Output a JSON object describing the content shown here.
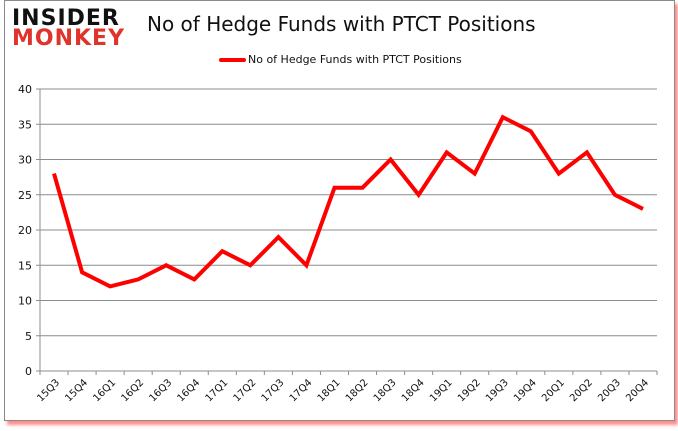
{
  "logo": {
    "line1": "INSIDER",
    "line2": "MONKEY"
  },
  "chart_data": {
    "type": "line",
    "title": "No of Hedge Funds with PTCT Positions",
    "xlabel": "",
    "ylabel": "",
    "ylim": [
      0,
      40
    ],
    "yticks": [
      0,
      5,
      10,
      15,
      20,
      25,
      30,
      35,
      40
    ],
    "grid": true,
    "legend_position": "top",
    "categories": [
      "15Q3",
      "15Q4",
      "16Q1",
      "16Q2",
      "16Q3",
      "16Q4",
      "17Q1",
      "17Q2",
      "17Q3",
      "17Q4",
      "18Q1",
      "18Q2",
      "18Q3",
      "18Q4",
      "19Q1",
      "19Q2",
      "19Q3",
      "19Q4",
      "20Q1",
      "20Q2",
      "20Q3",
      "20Q4"
    ],
    "series": [
      {
        "name": "No of Hedge Funds with PTCT Positions",
        "color": "#ff0000",
        "values": [
          28,
          14,
          12,
          13,
          15,
          13,
          17,
          15,
          19,
          15,
          26,
          26,
          30,
          25,
          31,
          28,
          36,
          34,
          28,
          31,
          25,
          23
        ]
      }
    ]
  }
}
